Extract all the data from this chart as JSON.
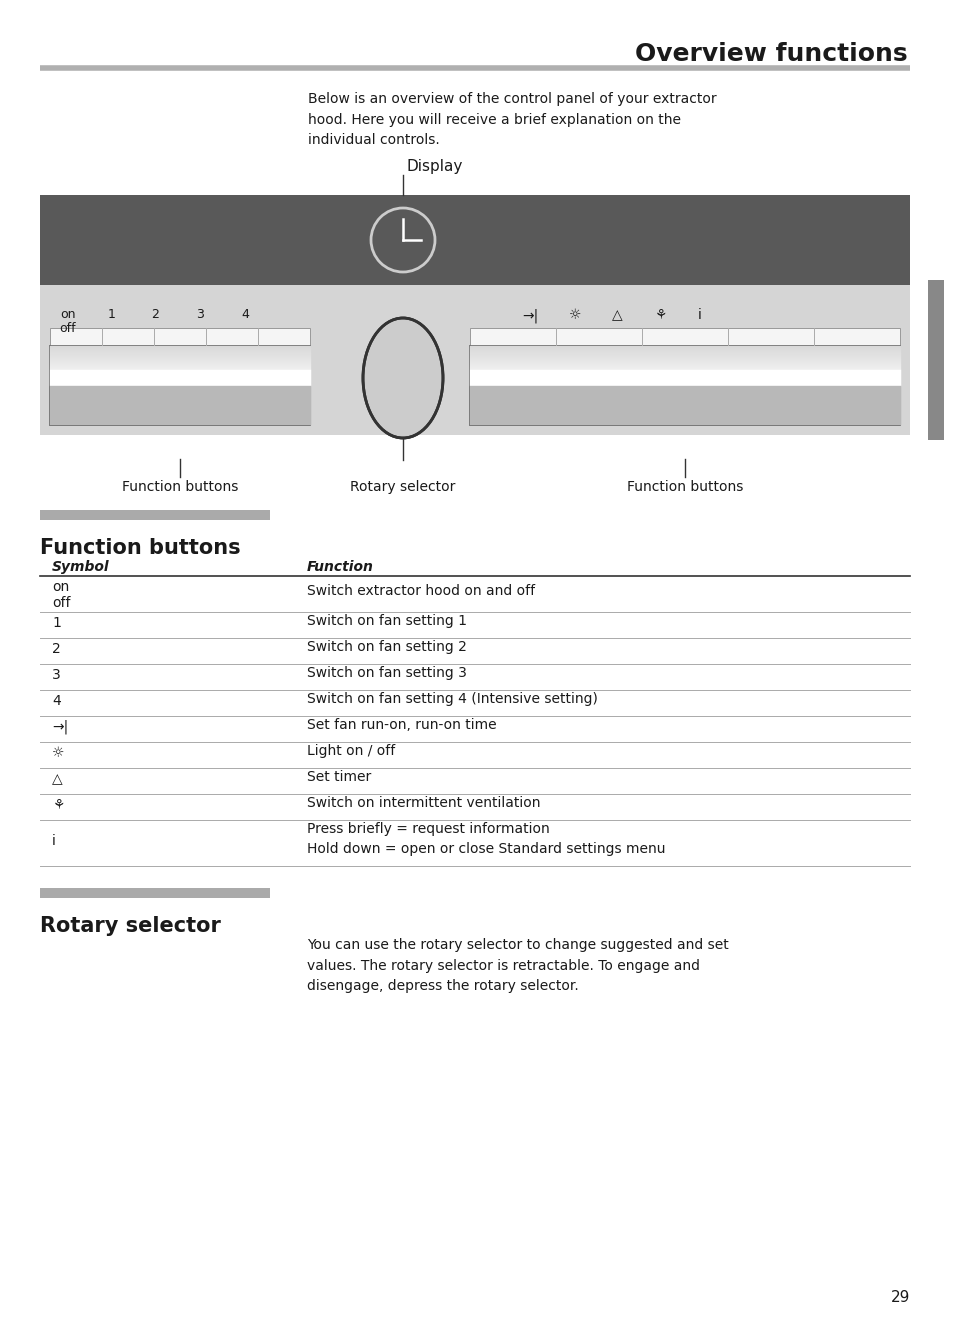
{
  "title": "Overview functions",
  "intro_text": "Below is an overview of the control panel of your extractor\nhood. Here you will receive a brief explanation on the\nindividual controls.",
  "display_label": "Display",
  "func_btn_label_left": "Function buttons",
  "rotary_label": "Rotary selector",
  "func_btn_label_right": "Function buttons",
  "section1_title": "Function buttons",
  "section2_title": "Rotary selector",
  "section2_text": "You can use the rotary selector to change suggested and set\nvalues. The rotary selector is retractable. To engage and\ndisengage, depress the rotary selector.",
  "table_headers": [
    "Symbol",
    "Function"
  ],
  "table_rows": [
    [
      "on\noff",
      "Switch extractor hood on and off"
    ],
    [
      "1",
      "Switch on fan setting 1"
    ],
    [
      "2",
      "Switch on fan setting 2"
    ],
    [
      "3",
      "Switch on fan setting 3"
    ],
    [
      "4",
      "Switch on fan setting 4 (Intensive setting)"
    ],
    [
      "→|",
      "Set fan run-on, run-on time"
    ],
    [
      "☼",
      "Light on / off"
    ],
    [
      "△",
      "Set timer"
    ],
    [
      "⚘",
      "Switch on intermittent ventilation"
    ],
    [
      "i",
      "Press briefly = request information\nHold down = open or close Standard settings menu"
    ]
  ],
  "page_number": "29",
  "bg_color": "#ffffff",
  "panel_dark_bg": "#595959",
  "gray_bar_color": "#aaaaaa",
  "text_color": "#1a1a1a",
  "line_color": "#333333",
  "panel_light_bg": "#e8e8e8",
  "panel_border": "#888888"
}
